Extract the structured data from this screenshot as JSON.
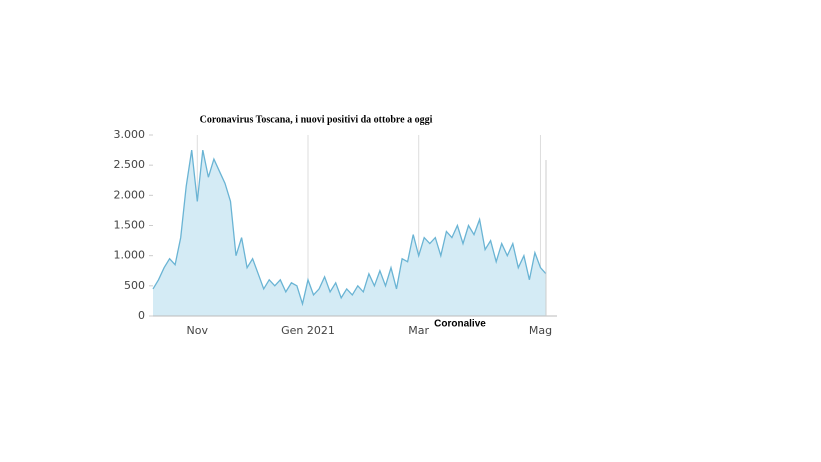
{
  "chart_data": {
    "type": "area",
    "title": "Coronavirus Toscana, i nuovi positivi da ottobre a oggi",
    "annotation": "Coronalive",
    "categories": [
      null,
      null,
      null,
      null,
      null,
      null,
      null,
      null,
      "Nov",
      null,
      null,
      null,
      null,
      null,
      null,
      null,
      null,
      null,
      null,
      null,
      null,
      null,
      null,
      null,
      null,
      null,
      null,
      null,
      "Gen 2021",
      null,
      null,
      null,
      null,
      null,
      null,
      null,
      null,
      null,
      null,
      null,
      null,
      null,
      null,
      null,
      null,
      null,
      null,
      null,
      "Mar",
      null,
      null,
      null,
      null,
      null,
      null,
      null,
      null,
      null,
      null,
      null,
      null,
      null,
      null,
      null,
      null,
      null,
      null,
      null,
      null,
      null,
      "Mag",
      null
    ],
    "series": [
      {
        "color": "#6ab4d4",
        "values": [
          450,
          600,
          800,
          950,
          850,
          1300,
          2150,
          2750,
          1900,
          2750,
          2300,
          2600,
          2400,
          2200,
          1900,
          1000,
          1300,
          800,
          950,
          700,
          450,
          600,
          500,
          600,
          400,
          550,
          500,
          200,
          600,
          350,
          450,
          650,
          400,
          550,
          300,
          450,
          350,
          500,
          400,
          700,
          500,
          750,
          500,
          800,
          450,
          950,
          900,
          1350,
          1000,
          1300,
          1200,
          1300,
          1000,
          1400,
          1300,
          1500,
          1200,
          1500,
          1350,
          1600,
          1100,
          1250,
          900,
          1200,
          1000,
          1200,
          800,
          1000,
          600,
          1050,
          800,
          700
        ]
      }
    ],
    "ylim": [
      0,
      3000
    ],
    "yticks": [
      0,
      500,
      {
        "value": 1000,
        "label": "1.000"
      },
      {
        "value": 1500,
        "label": "1.500"
      },
      {
        "value": 2000,
        "label": "2.000"
      },
      {
        "value": 2500,
        "label": "2.500"
      },
      {
        "value": 3000,
        "label": "3.000"
      }
    ],
    "grid": true
  }
}
